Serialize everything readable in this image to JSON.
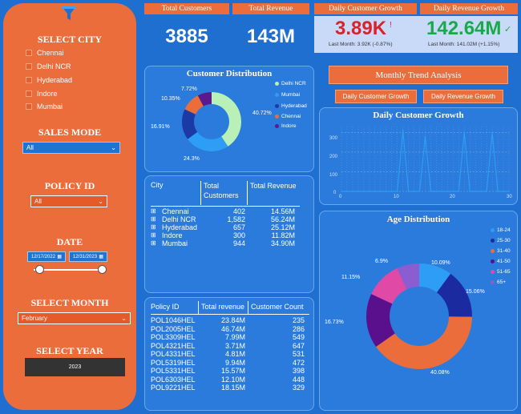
{
  "sidebar": {
    "select_city_title": "SELECT CITY",
    "cities": [
      "Chennai",
      "Delhi NCR",
      "Hyderabad",
      "Indore",
      "Mumbai"
    ],
    "sales_mode_title": "SALES MODE",
    "sales_mode_value": "All",
    "policy_id_title": "POLICY ID",
    "policy_id_value": "All",
    "date_title": "DATE",
    "date_start": "12/17/2022",
    "date_end": "12/31/2023",
    "select_month_title": "SELECT MONTH",
    "month_value": "February",
    "select_year_title": "SELECT YEAR",
    "year_value": "2023"
  },
  "kpis": {
    "total_customers_label": "Total Customers",
    "total_customers_value": "3885",
    "total_revenue_label": "Total Revenue",
    "total_revenue_value": "143M",
    "daily_customer_growth_label": "Daily Customer Growth",
    "daily_customer_growth_value": "3.89K",
    "daily_customer_growth_sub": "Last Month: 3.92K (-0.87%)",
    "daily_revenue_growth_label": "Daily Revenue Growth",
    "daily_revenue_growth_value": "142.64M",
    "daily_revenue_growth_sub": "Last Month: 141.02M (+1.15%)",
    "colors": {
      "down": "#d8232a",
      "up": "#1aa94a"
    }
  },
  "customer_distribution": {
    "title": "Customer Distribution",
    "legend": [
      "Delhi NCR",
      "Mumbai",
      "Hyderabad",
      "Chennai",
      "Indore"
    ],
    "labels": {
      "p1": "7.72%",
      "p2": "10.35%",
      "p3": "16.91%",
      "p4": "24.3%",
      "p5": "40.72%"
    }
  },
  "trend": {
    "title": "Monthly  Trend Analysis",
    "btn_customer": "Daily Customer Growth",
    "btn_revenue": "Daily Revenue Growth"
  },
  "daily_customer_growth_chart": {
    "title": "Daily Customer Growth",
    "y_ticks": [
      "300",
      "200",
      "100",
      "0"
    ],
    "x_ticks": [
      "0",
      "10",
      "20",
      "30"
    ]
  },
  "city_table": {
    "headers": [
      "City",
      "Total Customers",
      "Total Revenue"
    ],
    "rows": [
      [
        "Chennai",
        "402",
        "14.56M"
      ],
      [
        "Delhi NCR",
        "1,582",
        "56.24M"
      ],
      [
        "Hyderabad",
        "657",
        "25.12M"
      ],
      [
        "Indore",
        "300",
        "11.82M"
      ],
      [
        "Mumbai",
        "944",
        "34.90M"
      ]
    ]
  },
  "policy_table": {
    "headers": [
      "Policy ID",
      "Total revenue",
      "Customer Count"
    ],
    "rows": [
      [
        "POL1046HEL",
        "23.84M",
        "235"
      ],
      [
        "POL2005HEL",
        "46.74M",
        "286"
      ],
      [
        "POL3309HEL",
        "7.99M",
        "549"
      ],
      [
        "POL4321HEL",
        "3.71M",
        "647"
      ],
      [
        "POL4331HEL",
        "4.81M",
        "531"
      ],
      [
        "POL5319HEL",
        "9.94M",
        "472"
      ],
      [
        "POL5331HEL",
        "15.57M",
        "398"
      ],
      [
        "POL6303HEL",
        "12.10M",
        "448"
      ],
      [
        "POL9221HEL",
        "18.15M",
        "329"
      ]
    ]
  },
  "age_distribution": {
    "title": "Age Distribution",
    "legend": [
      "18-24",
      "25-30",
      "31-40",
      "41-50",
      "51-65",
      "65+"
    ],
    "labels": {
      "p1": "6.9%",
      "p2": "10.09%",
      "p3": "11.15%",
      "p4": "15.06%",
      "p5": "16.73%",
      "p6": "40.08%"
    }
  },
  "chart_data": [
    {
      "type": "pie",
      "title": "Customer Distribution",
      "categories": [
        "Delhi NCR",
        "Mumbai",
        "Hyderabad",
        "Chennai",
        "Indore"
      ],
      "values": [
        40.72,
        24.3,
        16.91,
        10.35,
        7.72
      ],
      "colors": [
        "#b8f0b8",
        "#2d9df5",
        "#1c3aa6",
        "#ec6d3c",
        "#5a1a8c"
      ]
    },
    {
      "type": "line",
      "title": "Daily Customer Growth",
      "x": [
        0,
        1,
        2,
        3,
        4,
        5,
        6,
        7,
        8,
        9,
        10,
        11,
        12,
        13,
        14,
        15,
        16,
        17,
        18,
        19,
        20,
        21,
        22,
        23,
        24,
        25,
        26,
        27,
        28,
        29,
        30
      ],
      "values": [
        0,
        0,
        0,
        0,
        0,
        0,
        0,
        0,
        0,
        0,
        0,
        310,
        0,
        0,
        0,
        280,
        0,
        0,
        0,
        0,
        0,
        0,
        300,
        0,
        0,
        0,
        0,
        300,
        0,
        0,
        0
      ],
      "ylim": [
        0,
        330
      ],
      "xlim": [
        0,
        30
      ]
    },
    {
      "type": "pie",
      "title": "Age Distribution",
      "categories": [
        "18-24",
        "25-30",
        "31-40",
        "41-50",
        "51-65",
        "65+"
      ],
      "values": [
        10.09,
        15.06,
        40.08,
        16.73,
        11.15,
        6.9
      ],
      "colors": [
        "#2d9df5",
        "#1c2aa0",
        "#ec6d3c",
        "#5a0f8c",
        "#e04aa6",
        "#8a5ed0"
      ]
    }
  ]
}
